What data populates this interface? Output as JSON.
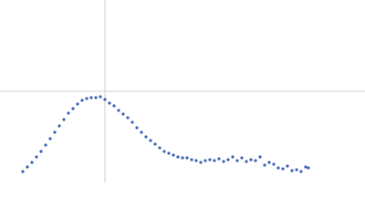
{
  "chart_data": {
    "type": "scatter",
    "color": "#3a62b4",
    "xlim": [
      0,
      400
    ],
    "ylim": [
      0,
      200
    ],
    "crosshair": {
      "x": 115,
      "y": 100
    },
    "crosshair_color": "#d0d0d0",
    "x": [
      25,
      30,
      35,
      40,
      45,
      50,
      55,
      60,
      65,
      70,
      75,
      80,
      85,
      90,
      95,
      100,
      105,
      110,
      115,
      120,
      125,
      130,
      135,
      140,
      145,
      150,
      155,
      160,
      165,
      170,
      175,
      180,
      185,
      190,
      195,
      200,
      205,
      210,
      215,
      220,
      225,
      230,
      235,
      240,
      245,
      250,
      255,
      260,
      265,
      270,
      275,
      280,
      285,
      290,
      295,
      300,
      305,
      310,
      315,
      320,
      325,
      330,
      335,
      338
    ],
    "values": [
      12,
      17,
      22,
      28,
      34,
      41,
      48,
      55,
      62,
      69,
      76,
      81,
      86,
      90,
      92,
      93,
      93,
      94,
      91,
      87,
      84,
      79,
      75,
      71,
      66,
      60,
      55,
      50,
      46,
      42,
      38,
      34,
      32,
      30,
      28,
      27,
      27,
      25,
      24,
      22,
      24,
      25,
      24,
      26,
      23,
      25,
      28,
      24,
      27,
      23,
      25,
      24,
      28,
      19,
      22,
      20,
      16,
      15,
      18,
      13,
      14,
      12,
      17,
      16
    ]
  }
}
